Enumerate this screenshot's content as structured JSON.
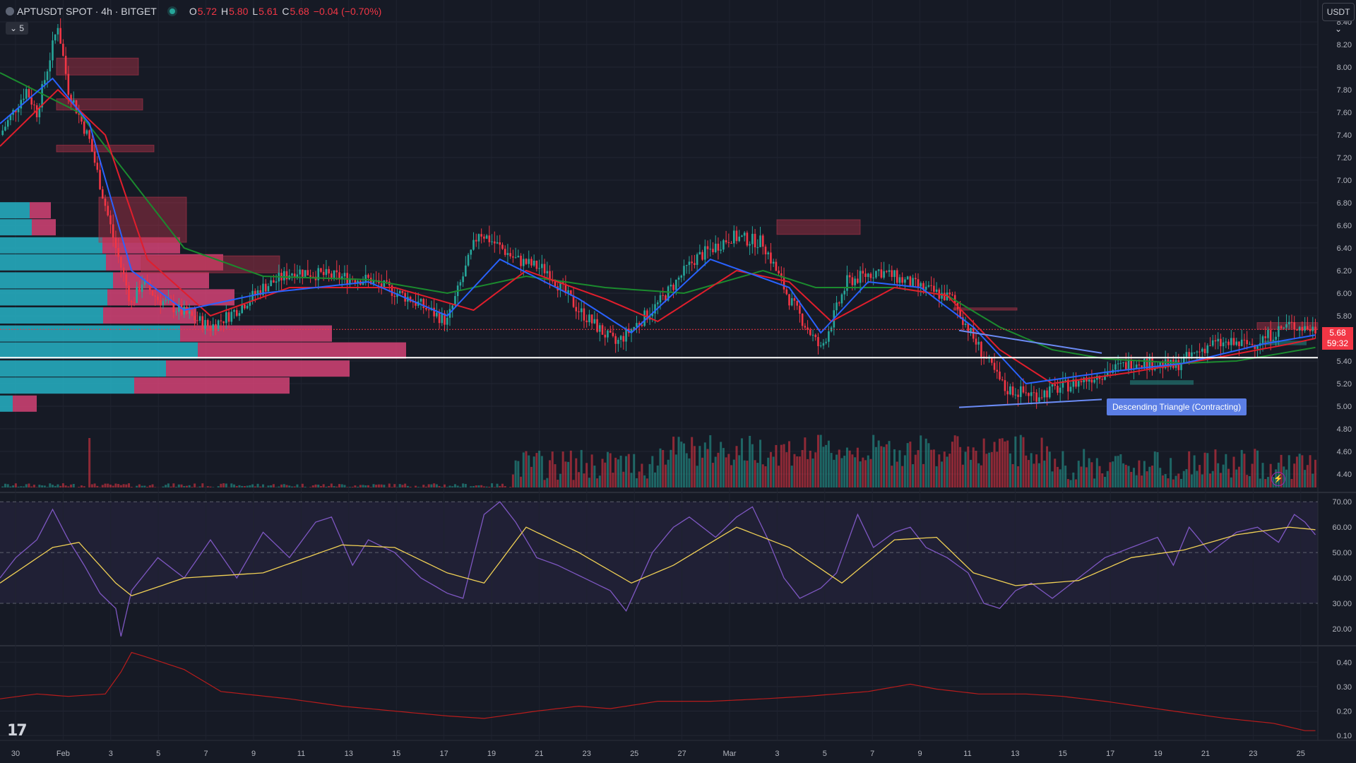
{
  "header": {
    "symbol": "APTUSDT SPOT · 4h · BITGET",
    "open_label": "O",
    "open": "5.72",
    "high_label": "H",
    "high": "5.80",
    "low_label": "L",
    "low": "5.61",
    "close_label": "C",
    "close": "5.68",
    "change": "−0.04 (−0.70%)",
    "collapse_count": "5"
  },
  "currency_button": "USDT",
  "logo_text": "17",
  "pattern_label": "Descending Triangle (Contracting)",
  "price_tag": {
    "price": "5.68",
    "countdown": "59:32"
  },
  "icons": {
    "alert": "lightning-icon",
    "logo": "tradingview-logo-icon"
  },
  "colors": {
    "background": "#161a25",
    "up": "#26a69a",
    "down": "#f23645",
    "ema_fast": "#2962ff",
    "ema_mid": "#e01e2c",
    "ema_slow": "#1b8a2e",
    "rsi": "#7e57c2",
    "rsi_ma": "#f0d055",
    "lower": "#b71c1c",
    "profile_up": "#26b3c6",
    "profile_down": "#e0457b"
  },
  "chart_data": [
    {
      "type": "candlestick",
      "panel": "price",
      "y_ticks": [
        "8.40",
        "8.20",
        "8.00",
        "7.80",
        "7.60",
        "7.40",
        "7.20",
        "7.00",
        "6.80",
        "6.60",
        "6.40",
        "6.20",
        "6.00",
        "5.80",
        "5.60",
        "5.40",
        "5.20",
        "5.00",
        "4.80",
        "4.60",
        "4.40"
      ],
      "ylim": [
        4.25,
        8.5
      ],
      "x_ticks": [
        "30",
        "Feb",
        "3",
        "5",
        "7",
        "9",
        "11",
        "13",
        "15",
        "17",
        "19",
        "21",
        "23",
        "25",
        "27",
        "Mar",
        "3",
        "5",
        "7",
        "9",
        "11",
        "13",
        "15",
        "17",
        "19",
        "21",
        "23",
        "25"
      ],
      "price_path": [
        [
          0,
          7.4
        ],
        [
          10,
          7.8
        ],
        [
          14,
          7.6
        ],
        [
          22,
          8.38
        ],
        [
          26,
          7.8
        ],
        [
          34,
          7.35
        ],
        [
          44,
          6.4
        ],
        [
          50,
          5.9
        ],
        [
          54,
          6.1
        ],
        [
          60,
          5.95
        ],
        [
          68,
          5.85
        ],
        [
          80,
          5.7
        ],
        [
          88,
          5.82
        ],
        [
          100,
          6.05
        ],
        [
          112,
          6.2
        ],
        [
          126,
          6.15
        ],
        [
          140,
          6.12
        ],
        [
          156,
          5.95
        ],
        [
          170,
          5.75
        ],
        [
          182,
          6.55
        ],
        [
          196,
          6.3
        ],
        [
          208,
          6.2
        ],
        [
          220,
          5.85
        ],
        [
          234,
          5.55
        ],
        [
          250,
          5.9
        ],
        [
          264,
          6.3
        ],
        [
          278,
          6.5
        ],
        [
          290,
          6.45
        ],
        [
          300,
          5.95
        ],
        [
          312,
          5.5
        ],
        [
          322,
          6.1
        ],
        [
          334,
          6.2
        ],
        [
          350,
          6.05
        ],
        [
          362,
          5.95
        ],
        [
          370,
          5.6
        ],
        [
          382,
          5.15
        ],
        [
          394,
          5.1
        ],
        [
          408,
          5.2
        ],
        [
          420,
          5.3
        ],
        [
          432,
          5.4
        ],
        [
          446,
          5.35
        ],
        [
          460,
          5.55
        ],
        [
          476,
          5.55
        ],
        [
          490,
          5.72
        ],
        [
          500,
          5.68
        ]
      ],
      "ema_fast_path": [
        [
          0,
          7.5
        ],
        [
          20,
          7.9
        ],
        [
          34,
          7.5
        ],
        [
          50,
          6.2
        ],
        [
          70,
          5.85
        ],
        [
          100,
          6.0
        ],
        [
          140,
          6.1
        ],
        [
          170,
          5.8
        ],
        [
          190,
          6.3
        ],
        [
          220,
          5.95
        ],
        [
          240,
          5.65
        ],
        [
          270,
          6.3
        ],
        [
          300,
          6.05
        ],
        [
          312,
          5.65
        ],
        [
          330,
          6.1
        ],
        [
          350,
          6.05
        ],
        [
          370,
          5.7
        ],
        [
          390,
          5.2
        ],
        [
          420,
          5.3
        ],
        [
          450,
          5.38
        ],
        [
          480,
          5.55
        ],
        [
          500,
          5.63
        ]
      ],
      "ema_mid_path": [
        [
          0,
          7.3
        ],
        [
          22,
          7.8
        ],
        [
          40,
          7.4
        ],
        [
          56,
          6.3
        ],
        [
          80,
          5.8
        ],
        [
          110,
          6.05
        ],
        [
          150,
          6.05
        ],
        [
          180,
          5.85
        ],
        [
          200,
          6.2
        ],
        [
          230,
          5.95
        ],
        [
          250,
          5.75
        ],
        [
          280,
          6.2
        ],
        [
          300,
          6.1
        ],
        [
          316,
          5.75
        ],
        [
          340,
          6.05
        ],
        [
          360,
          5.98
        ],
        [
          380,
          5.5
        ],
        [
          400,
          5.2
        ],
        [
          430,
          5.3
        ],
        [
          460,
          5.42
        ],
        [
          490,
          5.55
        ],
        [
          500,
          5.6
        ]
      ],
      "ema_slow_path": [
        [
          0,
          7.95
        ],
        [
          30,
          7.6
        ],
        [
          50,
          7.0
        ],
        [
          70,
          6.4
        ],
        [
          100,
          6.15
        ],
        [
          140,
          6.12
        ],
        [
          170,
          6.0
        ],
        [
          200,
          6.15
        ],
        [
          230,
          6.05
        ],
        [
          260,
          6.0
        ],
        [
          290,
          6.2
        ],
        [
          310,
          6.05
        ],
        [
          340,
          6.05
        ],
        [
          360,
          5.98
        ],
        [
          380,
          5.7
        ],
        [
          400,
          5.5
        ],
        [
          420,
          5.42
        ],
        [
          450,
          5.38
        ],
        [
          470,
          5.4
        ],
        [
          490,
          5.48
        ],
        [
          500,
          5.52
        ]
      ],
      "horizontal_levels": [
        5.43,
        5.68
      ],
      "resistance_zones": [
        {
          "x0": 80,
          "x1": 196,
          "y0": 7.93,
          "y1": 8.08
        },
        {
          "x0": 80,
          "x1": 202,
          "y0": 7.62,
          "y1": 7.72
        },
        {
          "x0": 80,
          "x1": 218,
          "y0": 7.25,
          "y1": 7.31
        },
        {
          "x0": 140,
          "x1": 264,
          "y0": 6.45,
          "y1": 6.85
        },
        {
          "x0": 200,
          "x1": 396,
          "y0": 6.18,
          "y1": 6.33
        },
        {
          "x0": 1100,
          "x1": 1218,
          "y0": 6.52,
          "y1": 6.65
        },
        {
          "x0": 1350,
          "x1": 1440,
          "y0": 5.85,
          "y1": 5.87
        },
        {
          "x0": 1780,
          "x1": 1866,
          "y0": 5.68,
          "y1": 5.74
        }
      ],
      "support_zones": [
        {
          "x0": 1600,
          "x1": 1690,
          "y0": 5.19,
          "y1": 5.23
        },
        {
          "x0": 1790,
          "x1": 1850,
          "y0": 5.54,
          "y1": 5.58
        }
      ],
      "triangle": {
        "upper": [
          [
            1358,
            5.67
          ],
          [
            1560,
            5.47
          ]
        ],
        "lower": [
          [
            1358,
            4.99
          ],
          [
            1560,
            5.06
          ]
        ]
      },
      "volume_profile": [
        {
          "price": 6.73,
          "up": 0.42,
          "down": 0.3
        },
        {
          "price": 6.58,
          "up": 0.45,
          "down": 0.34
        },
        {
          "price": 6.42,
          "up": 1.45,
          "down": 1.1
        },
        {
          "price": 6.27,
          "up": 1.5,
          "down": 1.66
        },
        {
          "price": 6.11,
          "up": 1.6,
          "down": 1.36
        },
        {
          "price": 5.96,
          "up": 1.52,
          "down": 1.8
        },
        {
          "price": 5.8,
          "up": 1.46,
          "down": 1.32
        },
        {
          "price": 5.64,
          "up": 2.55,
          "down": 2.15
        },
        {
          "price": 5.49,
          "up": 2.8,
          "down": 2.95
        },
        {
          "price": 5.33,
          "up": 2.35,
          "down": 2.6
        },
        {
          "price": 5.18,
          "up": 1.9,
          "down": 2.2
        },
        {
          "price": 5.02,
          "up": 0.18,
          "down": 0.34
        }
      ]
    },
    {
      "type": "line",
      "panel": "rsi",
      "y_ticks": [
        "70.00",
        "60.00",
        "50.00",
        "40.00",
        "30.00",
        "20.00"
      ],
      "levels": [
        70,
        50,
        30
      ],
      "ylim": [
        15,
        72
      ],
      "rsi_path": [
        [
          0,
          40
        ],
        [
          6,
          48
        ],
        [
          14,
          55
        ],
        [
          20,
          67
        ],
        [
          26,
          55
        ],
        [
          32,
          45
        ],
        [
          38,
          34
        ],
        [
          44,
          28
        ],
        [
          46,
          17
        ],
        [
          50,
          35
        ],
        [
          60,
          48
        ],
        [
          70,
          40
        ],
        [
          80,
          55
        ],
        [
          90,
          40
        ],
        [
          100,
          58
        ],
        [
          110,
          48
        ],
        [
          120,
          62
        ],
        [
          126,
          64
        ],
        [
          134,
          45
        ],
        [
          140,
          55
        ],
        [
          150,
          50
        ],
        [
          160,
          40
        ],
        [
          170,
          34
        ],
        [
          176,
          32
        ],
        [
          184,
          65
        ],
        [
          190,
          70
        ],
        [
          196,
          62
        ],
        [
          204,
          48
        ],
        [
          212,
          45
        ],
        [
          222,
          40
        ],
        [
          232,
          35
        ],
        [
          238,
          27
        ],
        [
          248,
          50
        ],
        [
          256,
          60
        ],
        [
          262,
          64
        ],
        [
          272,
          56
        ],
        [
          280,
          64
        ],
        [
          286,
          68
        ],
        [
          292,
          55
        ],
        [
          298,
          40
        ],
        [
          304,
          32
        ],
        [
          312,
          36
        ],
        [
          318,
          42
        ],
        [
          326,
          65
        ],
        [
          332,
          52
        ],
        [
          340,
          58
        ],
        [
          346,
          60
        ],
        [
          352,
          52
        ],
        [
          360,
          48
        ],
        [
          368,
          42
        ],
        [
          374,
          30
        ],
        [
          380,
          28
        ],
        [
          386,
          35
        ],
        [
          392,
          38
        ],
        [
          400,
          32
        ],
        [
          410,
          40
        ],
        [
          420,
          48
        ],
        [
          430,
          52
        ],
        [
          440,
          56
        ],
        [
          446,
          45
        ],
        [
          452,
          60
        ],
        [
          460,
          50
        ],
        [
          470,
          58
        ],
        [
          478,
          60
        ],
        [
          486,
          54
        ],
        [
          492,
          65
        ],
        [
          496,
          62
        ],
        [
          500,
          57
        ]
      ],
      "rsi_ma_path": [
        [
          0,
          38
        ],
        [
          20,
          52
        ],
        [
          30,
          54
        ],
        [
          44,
          38
        ],
        [
          50,
          33
        ],
        [
          70,
          40
        ],
        [
          100,
          42
        ],
        [
          130,
          53
        ],
        [
          150,
          52
        ],
        [
          170,
          42
        ],
        [
          184,
          38
        ],
        [
          200,
          60
        ],
        [
          220,
          50
        ],
        [
          240,
          38
        ],
        [
          256,
          45
        ],
        [
          280,
          60
        ],
        [
          300,
          52
        ],
        [
          320,
          38
        ],
        [
          340,
          55
        ],
        [
          356,
          56
        ],
        [
          370,
          42
        ],
        [
          386,
          37
        ],
        [
          410,
          39
        ],
        [
          430,
          48
        ],
        [
          450,
          51
        ],
        [
          470,
          57
        ],
        [
          490,
          60
        ],
        [
          500,
          59
        ]
      ]
    },
    {
      "type": "line",
      "panel": "lower",
      "y_ticks": [
        "0.40",
        "0.30",
        "0.20",
        "0.10"
      ],
      "ylim": [
        0.08,
        0.45
      ],
      "path": [
        [
          0,
          0.25
        ],
        [
          14,
          0.27
        ],
        [
          26,
          0.26
        ],
        [
          40,
          0.27
        ],
        [
          46,
          0.36
        ],
        [
          50,
          0.44
        ],
        [
          56,
          0.42
        ],
        [
          70,
          0.37
        ],
        [
          84,
          0.28
        ],
        [
          110,
          0.25
        ],
        [
          130,
          0.22
        ],
        [
          150,
          0.2
        ],
        [
          170,
          0.18
        ],
        [
          184,
          0.17
        ],
        [
          204,
          0.2
        ],
        [
          220,
          0.22
        ],
        [
          232,
          0.21
        ],
        [
          250,
          0.24
        ],
        [
          270,
          0.24
        ],
        [
          290,
          0.25
        ],
        [
          306,
          0.26
        ],
        [
          318,
          0.27
        ],
        [
          330,
          0.28
        ],
        [
          346,
          0.31
        ],
        [
          356,
          0.29
        ],
        [
          372,
          0.27
        ],
        [
          390,
          0.27
        ],
        [
          404,
          0.26
        ],
        [
          420,
          0.24
        ],
        [
          446,
          0.2
        ],
        [
          466,
          0.17
        ],
        [
          484,
          0.15
        ],
        [
          496,
          0.12
        ],
        [
          500,
          0.12
        ]
      ]
    }
  ]
}
